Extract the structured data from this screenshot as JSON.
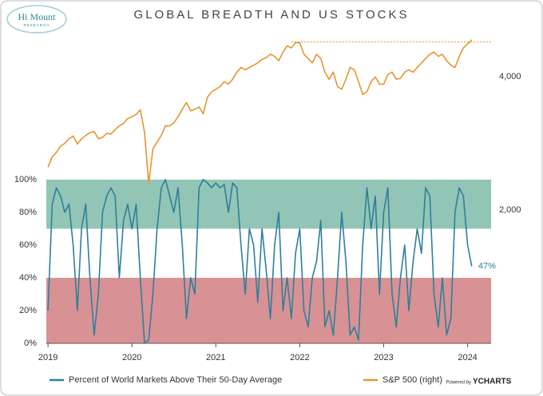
{
  "chart_data": {
    "type": "line",
    "title": "GLOBAL BREADTH AND US STOCKS",
    "logo": {
      "name": "Hi Mount",
      "subtitle": "RESEARCH"
    },
    "footer": {
      "prefix": "Powered by",
      "brand": "YCHARTS"
    },
    "x": [
      2019.0,
      2019.05,
      2019.1,
      2019.15,
      2019.2,
      2019.25,
      2019.3,
      2019.35,
      2019.4,
      2019.45,
      2019.5,
      2019.55,
      2019.6,
      2019.65,
      2019.7,
      2019.75,
      2019.8,
      2019.85,
      2019.9,
      2019.95,
      2020.0,
      2020.05,
      2020.1,
      2020.15,
      2020.2,
      2020.25,
      2020.3,
      2020.35,
      2020.4,
      2020.45,
      2020.5,
      2020.55,
      2020.6,
      2020.65,
      2020.7,
      2020.75,
      2020.8,
      2020.85,
      2020.9,
      2020.95,
      2021.0,
      2021.05,
      2021.1,
      2021.15,
      2021.2,
      2021.25,
      2021.3,
      2021.35,
      2021.4,
      2021.45,
      2021.5,
      2021.55,
      2021.6,
      2021.65,
      2021.7,
      2021.75,
      2021.8,
      2021.85,
      2021.9,
      2021.95,
      2022.0,
      2022.05,
      2022.1,
      2022.15,
      2022.2,
      2022.25,
      2022.3,
      2022.35,
      2022.4,
      2022.45,
      2022.5,
      2022.55,
      2022.6,
      2022.65,
      2022.7,
      2022.75,
      2022.8,
      2022.85,
      2022.9,
      2022.95,
      2023.0,
      2023.05,
      2023.1,
      2023.15,
      2023.2,
      2023.25,
      2023.3,
      2023.35,
      2023.4,
      2023.45,
      2023.5,
      2023.55,
      2023.6,
      2023.65,
      2023.7,
      2023.75,
      2023.8,
      2023.85,
      2023.9,
      2023.95,
      2024.0,
      2024.05
    ],
    "xlim": [
      2018.98,
      2024.28
    ],
    "xticks": [
      2019,
      2020,
      2021,
      2022,
      2023,
      2024
    ],
    "ylim": [
      0,
      198
    ],
    "yticks": [
      {
        "value": 0,
        "label": "0%"
      },
      {
        "value": 20,
        "label": "20%"
      },
      {
        "value": 40,
        "label": "40%"
      },
      {
        "value": 60,
        "label": "60%"
      },
      {
        "value": 80,
        "label": "80%"
      },
      {
        "value": 100,
        "label": "100%"
      }
    ],
    "y2lim": [
      1000,
      5400
    ],
    "y2ticks": [
      {
        "value": 2000,
        "label": "2,000"
      },
      {
        "value": 4000,
        "label": "4,000"
      }
    ],
    "y2_log": true,
    "bands": [
      {
        "from": 70,
        "to": 100,
        "color": "#92c5b6"
      },
      {
        "from": 0,
        "to": 40,
        "color": "#d99294"
      }
    ],
    "reference_line": {
      "value": 4797,
      "from": 2021.9,
      "color": "#e8952f",
      "axis": "y2"
    },
    "series": [
      {
        "name": "Percent of World Markets Above Their 50-Day Average",
        "color": "#2e7f9c",
        "end_label": "47%",
        "values": [
          20,
          85,
          95,
          90,
          80,
          85,
          60,
          20,
          70,
          85,
          40,
          5,
          30,
          80,
          90,
          95,
          90,
          40,
          75,
          85,
          70,
          85,
          40,
          0,
          2,
          30,
          70,
          95,
          100,
          90,
          80,
          95,
          60,
          15,
          40,
          30,
          95,
          100,
          98,
          95,
          98,
          95,
          97,
          80,
          98,
          95,
          60,
          30,
          70,
          60,
          25,
          70,
          45,
          15,
          60,
          80,
          20,
          40,
          15,
          55,
          70,
          20,
          10,
          40,
          50,
          75,
          10,
          20,
          5,
          40,
          80,
          50,
          5,
          10,
          2,
          60,
          95,
          70,
          90,
          30,
          80,
          95,
          30,
          10,
          40,
          60,
          20,
          50,
          70,
          55,
          95,
          90,
          30,
          10,
          40,
          5,
          15,
          80,
          95,
          90,
          60,
          47
        ]
      },
      {
        "name": "S&P 500 (right)",
        "color": "#e8952f",
        "axis": "y2",
        "values": [
          2500,
          2640,
          2700,
          2790,
          2830,
          2900,
          2940,
          2820,
          2900,
          2950,
          2990,
          3010,
          2900,
          2920,
          2980,
          2970,
          3040,
          3100,
          3140,
          3220,
          3250,
          3290,
          3370,
          3000,
          2300,
          2750,
          2850,
          2950,
          3100,
          3100,
          3150,
          3250,
          3380,
          3500,
          3350,
          3380,
          3420,
          3300,
          3600,
          3700,
          3750,
          3800,
          3900,
          3850,
          3950,
          4100,
          4200,
          4150,
          4200,
          4250,
          4300,
          4380,
          4420,
          4500,
          4450,
          4350,
          4550,
          4700,
          4650,
          4780,
          4780,
          4500,
          4400,
          4300,
          4500,
          4400,
          4100,
          3950,
          4100,
          3800,
          3750,
          3950,
          4200,
          4150,
          3900,
          3650,
          3700,
          3900,
          4000,
          3850,
          3850,
          4050,
          4100,
          3950,
          3970,
          4100,
          4150,
          4100,
          4200,
          4300,
          4400,
          4500,
          4550,
          4450,
          4500,
          4350,
          4250,
          4200,
          4450,
          4650,
          4750,
          4850
        ]
      }
    ]
  }
}
